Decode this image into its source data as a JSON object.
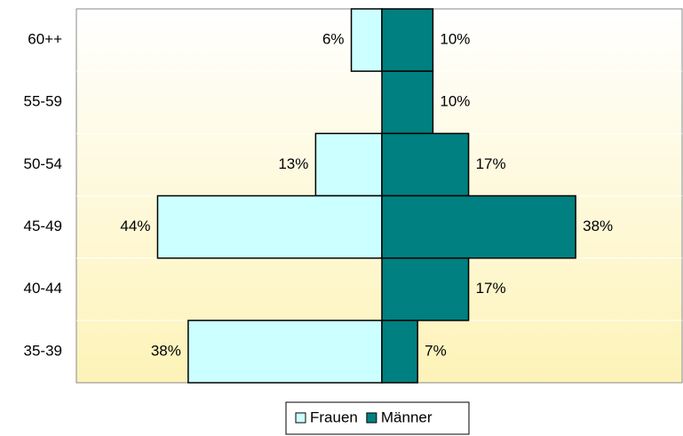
{
  "chart_data": {
    "type": "bar",
    "orientation": "horizontal",
    "categories": [
      "60++",
      "55-59",
      "50-54",
      "45-49",
      "40-44",
      "35-39"
    ],
    "series": [
      {
        "name": "Frauen",
        "color": "#ccffff",
        "values": [
          6,
          null,
          13,
          44,
          null,
          38
        ],
        "value_labels": [
          "6%",
          null,
          "13%",
          "44%",
          null,
          "38%"
        ]
      },
      {
        "name": "Männer",
        "color": "#008080",
        "values": [
          10,
          10,
          17,
          38,
          17,
          7
        ],
        "value_labels": [
          "10%",
          "10%",
          "17%",
          "38%",
          "17%",
          "7%"
        ]
      }
    ],
    "legend": "bottom"
  }
}
